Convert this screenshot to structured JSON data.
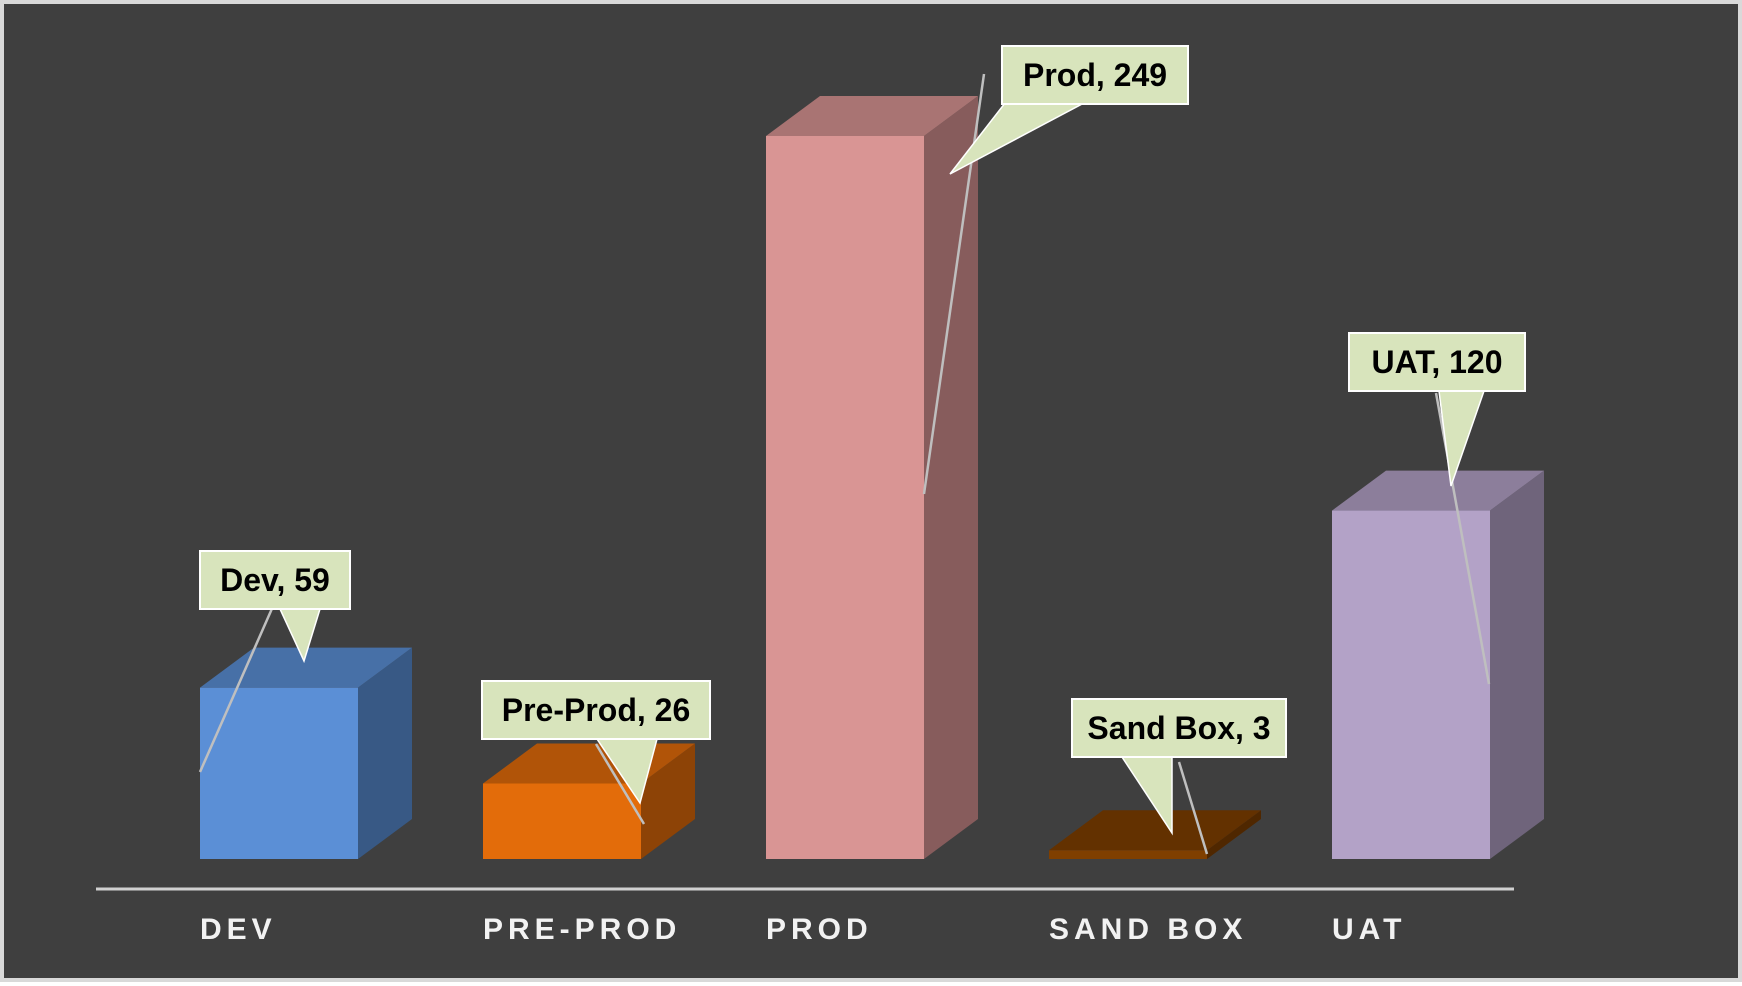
{
  "chart_data": {
    "type": "bar",
    "style": "3d-column",
    "title": "",
    "xlabel": "",
    "ylabel": "",
    "ylim": [
      0,
      249
    ],
    "grid": false,
    "legend": "none",
    "categories": [
      "DEV",
      "PRE-PROD",
      "PROD",
      "SAND BOX",
      "UAT"
    ],
    "values": [
      59,
      26,
      249,
      3,
      120
    ],
    "data_labels": [
      "Dev, 59",
      "Pre-Prod, 26",
      "Prod, 249",
      "Sand Box, 3",
      "UAT, 120"
    ],
    "colors": [
      "#5b8fd6",
      "#e36c0a",
      "#d99594",
      "#7f3f00",
      "#b3a2c7"
    ],
    "background": "#3f3f3f",
    "label_fill": "#d8e4bc"
  }
}
